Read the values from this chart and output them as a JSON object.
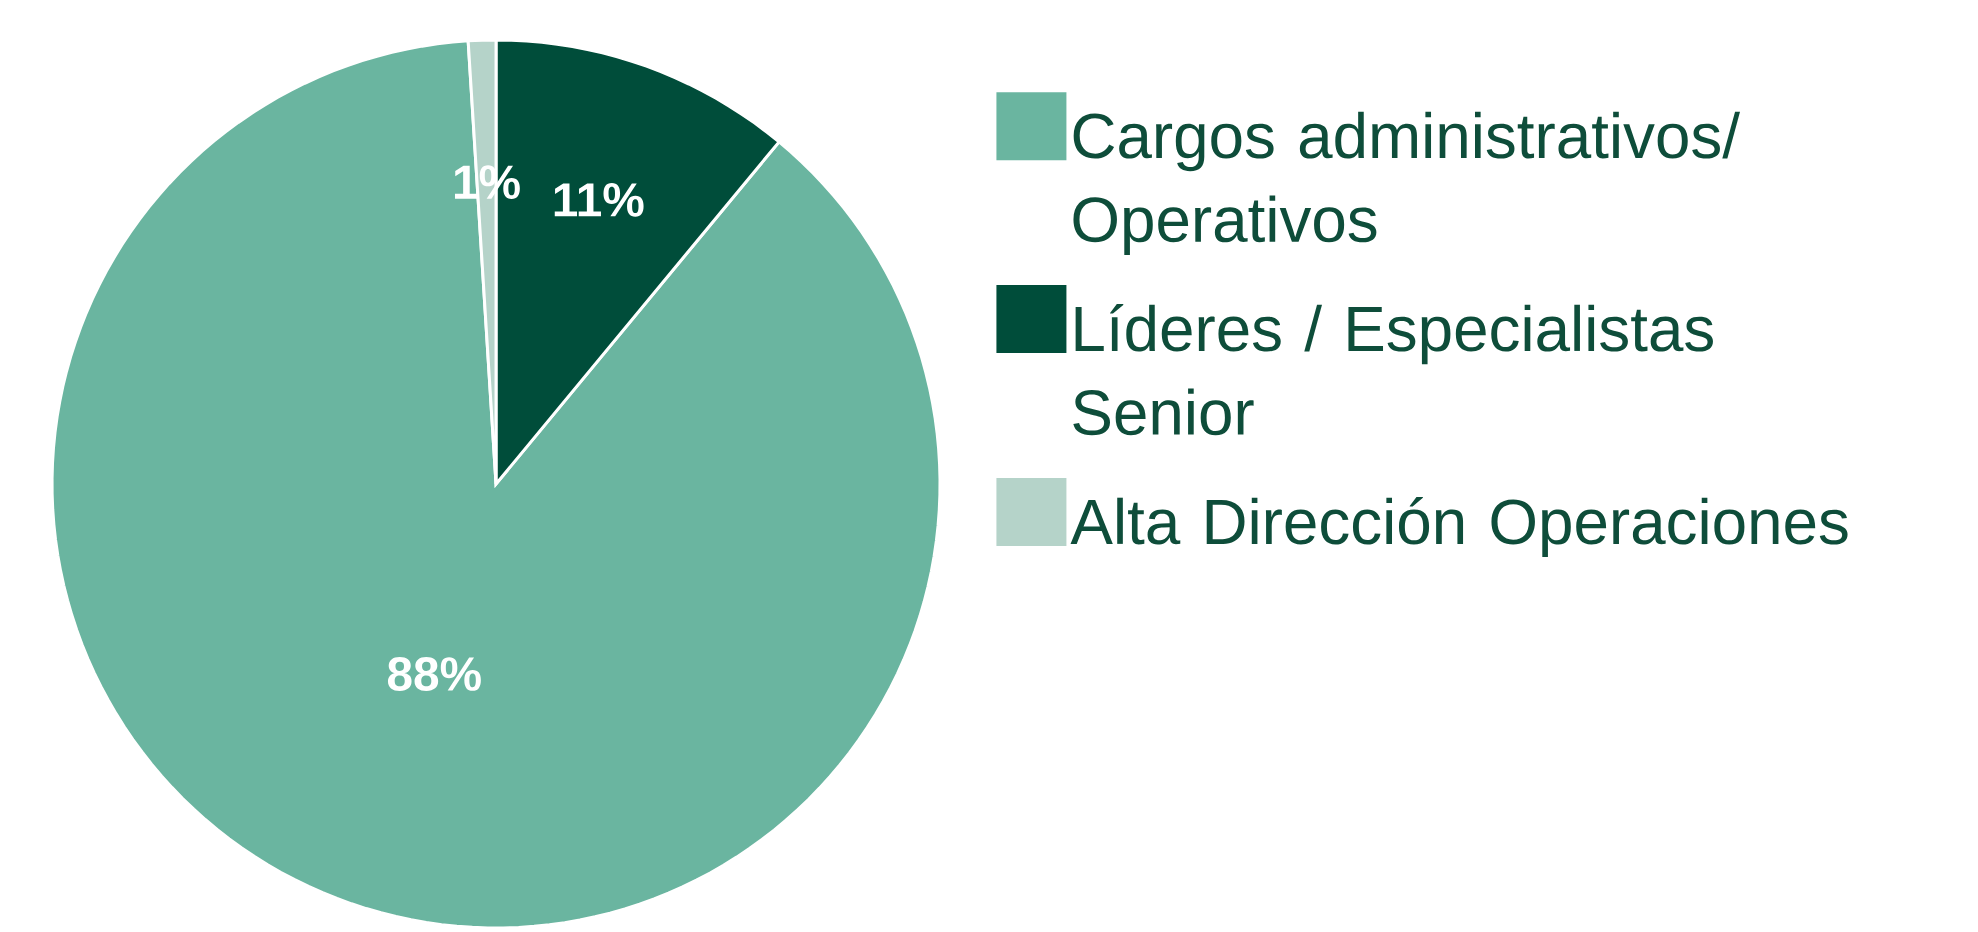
{
  "chart_data": {
    "type": "pie",
    "categories": [
      "Cargos administrativos/ Operativos",
      "Líderes / Especialistas Senior",
      "Alta Dirección Operaciones"
    ],
    "values": [
      88,
      11,
      1
    ],
    "colors": [
      "#6ab5a0",
      "#004d3a",
      "#b5d3c9"
    ],
    "value_labels": [
      "88%",
      "11%",
      "1%"
    ],
    "legend": "right"
  }
}
